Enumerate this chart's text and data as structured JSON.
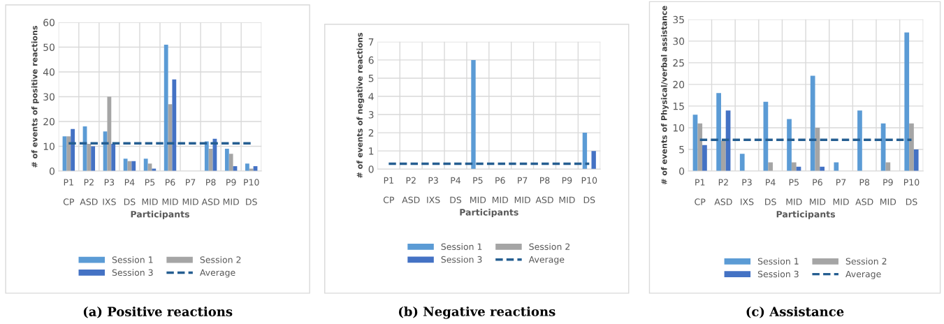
{
  "chart_data": [
    {
      "type": "bar",
      "title": "(a) Positive reactions",
      "xlabel": "Participants",
      "ylabel": "# of events of positive reactions",
      "categories": [
        "P1\n\nCP",
        "P2\n\nASD",
        "P3\n\nIXS",
        "P4\n\nDS",
        "P5\n\nMID",
        "P6\n\nMID",
        "P7\n\nMID",
        "P8\n\nASD",
        "P9\n\nMID",
        "P10\n\nDS"
      ],
      "series": [
        {
          "name": "Session 1",
          "color": "#5b9bd5",
          "values": [
            14,
            18,
            16,
            5,
            5,
            51,
            0,
            12,
            9,
            3
          ]
        },
        {
          "name": "Session 2",
          "color": "#a5a5a5",
          "values": [
            14,
            11,
            30,
            4,
            3,
            27,
            0,
            9,
            7,
            1
          ]
        },
        {
          "name": "Session 3",
          "color": "#4472c4",
          "values": [
            17,
            10,
            11,
            4,
            1,
            37,
            0,
            13,
            2,
            2
          ]
        },
        {
          "name": "Average",
          "type": "line",
          "color": "#255e91",
          "line_style": "dashed",
          "marker": "none",
          "values": [
            11.2,
            11.2,
            11.2,
            11.2,
            11.2,
            11.2,
            11.2,
            11.2,
            11.2,
            11.2
          ]
        }
      ],
      "ylim": [
        0,
        60
      ],
      "yticks": [
        0,
        10,
        20,
        30,
        40,
        50,
        60
      ],
      "grid": true,
      "legend": "bottom"
    },
    {
      "type": "bar",
      "title": "(b) Negative reactions",
      "xlabel": "Participants",
      "ylabel": "# of events of negative reactions",
      "categories": [
        "P1\n\nCP",
        "P2\n\nASD",
        "P3\n\nIXS",
        "P4\n\nDS",
        "P5\n\nMID",
        "P6\n\nMID",
        "P7\n\nMID",
        "P8\n\nASD",
        "P9\n\nMID",
        "P10\n\nDS"
      ],
      "series": [
        {
          "name": "Session 1",
          "color": "#5b9bd5",
          "values": [
            0,
            0,
            0,
            0,
            6,
            0,
            0,
            0,
            0,
            2
          ]
        },
        {
          "name": "Session 2",
          "color": "#a5a5a5",
          "values": [
            0,
            0,
            0,
            0,
            0,
            0,
            0,
            0,
            0,
            0
          ]
        },
        {
          "name": "Session 3",
          "color": "#4472c4",
          "values": [
            0,
            0,
            0,
            0,
            0,
            0,
            0,
            0,
            0,
            1
          ]
        },
        {
          "name": "Average",
          "type": "line",
          "color": "#255e91",
          "line_style": "dashed",
          "marker": "none",
          "values": [
            0.3,
            0.3,
            0.3,
            0.3,
            0.3,
            0.3,
            0.3,
            0.3,
            0.3,
            0.3
          ]
        }
      ],
      "ylim": [
        0,
        7
      ],
      "yticks": [
        0,
        1,
        2,
        3,
        4,
        5,
        6,
        7
      ],
      "grid": true,
      "legend": "bottom"
    },
    {
      "type": "bar",
      "title": "(c) Assistance",
      "xlabel": "Participants",
      "ylabel": "# of events of Physical/verbal assistance",
      "categories": [
        "P1\n\nCP",
        "P2\n\nASD",
        "P3\n\nIXS",
        "P4\n\nDS",
        "P5\n\nMID",
        "P6\n\nMID",
        "P7\n\nMID",
        "P8\n\nASD",
        "P9\n\nMID",
        "P10\n\nDS"
      ],
      "series": [
        {
          "name": "Session 1",
          "color": "#5b9bd5",
          "values": [
            13,
            18,
            4,
            16,
            12,
            22,
            2,
            14,
            11,
            32
          ]
        },
        {
          "name": "Session 2",
          "color": "#a5a5a5",
          "values": [
            11,
            7,
            0,
            2,
            2,
            10,
            0,
            0,
            2,
            11
          ]
        },
        {
          "name": "Session 3",
          "color": "#4472c4",
          "values": [
            6,
            14,
            0,
            0,
            1,
            1,
            0,
            0,
            0,
            5
          ]
        },
        {
          "name": "Average",
          "type": "line",
          "color": "#255e91",
          "line_style": "dashed",
          "marker": "none",
          "values": [
            7.2,
            7.2,
            7.2,
            7.2,
            7.2,
            7.2,
            7.2,
            7.2,
            7.2,
            7.2
          ]
        }
      ],
      "ylim": [
        0,
        35
      ],
      "yticks": [
        0,
        5,
        10,
        15,
        20,
        25,
        30,
        35
      ],
      "grid": true,
      "legend": "bottom"
    }
  ]
}
